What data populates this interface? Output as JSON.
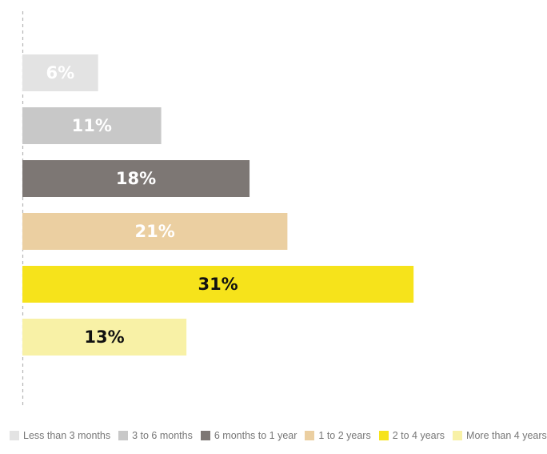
{
  "chart_data": {
    "type": "bar",
    "orientation": "horizontal",
    "title": "",
    "xlabel": "",
    "ylabel": "",
    "xlim": [
      0,
      35
    ],
    "grid": false,
    "legend_position": "bottom",
    "categories": [
      "Less than 3 months",
      "3 to 6 months",
      "6 months to 1 year",
      "1 to 2 years",
      "2 to 4 years",
      "More than 4 years"
    ],
    "values": [
      6,
      11,
      18,
      21,
      31,
      13
    ],
    "value_labels": [
      "6%",
      "11%",
      "18%",
      "21%",
      "31%",
      "13%"
    ],
    "colors": [
      "#e3e3e3",
      "#c8c8c8",
      "#7d7774",
      "#ebcfa1",
      "#f6e31b",
      "#f8f1a6"
    ],
    "label_colors": [
      "#ffffff",
      "#ffffff",
      "#ffffff",
      "#ffffff",
      "#111111",
      "#111111"
    ],
    "baseline_color": "#b4b4b4"
  }
}
